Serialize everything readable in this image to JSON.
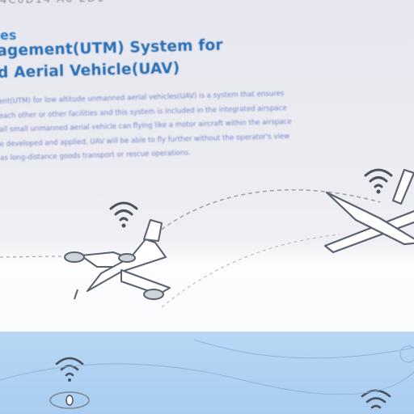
{
  "header": {
    "code": "4C0D14  A0  2D1",
    "section_label": "es",
    "title_line1": "agement(UTM) System for",
    "title_line2": "d Aerial Vehicle(UAV)"
  },
  "description": [
    "ent(UTM) for low altitude unmanned aerial vehicles(UAV) is a system that ensures",
    "each other or other facilities and this system is included in the integrated airspace",
    "all small unmanned aerial vehicle can flying like a motor aircraft within the airspace",
    "e developed and applied, UAV will be able to fly further without the operator's view",
    "as long-distance goods transport or rescue operations."
  ],
  "illustration": {
    "icons": [
      "wifi-signal-icon",
      "drone-aircraft-icon",
      "fixed-wing-uav-icon",
      "satellite-dish-icon"
    ],
    "colors": {
      "title": "#2a6fb4",
      "body_text": "#7a86c6",
      "water": "#aacfef",
      "line_art": "#5a6270"
    }
  }
}
